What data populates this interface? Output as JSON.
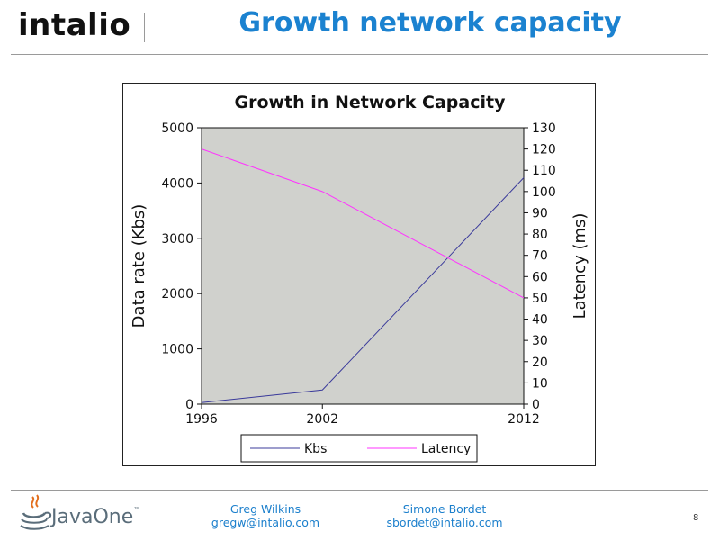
{
  "header": {
    "logo_text": "intalio",
    "title": "Growth network capacity"
  },
  "footer": {
    "logo_text": "JavaOne",
    "logo_tm": "™",
    "authors": [
      {
        "name": "Greg Wilkins",
        "email": "gregw@intalio.com"
      },
      {
        "name": "Simone Bordet",
        "email": "sbordet@intalio.com"
      }
    ],
    "page_number": "8"
  },
  "colors": {
    "title": "#1b82d0",
    "plot_background": "#d0d1cd",
    "kbs_line": "#3b3b9b",
    "latency_line": "#ff33ff"
  },
  "chart_data": {
    "type": "line",
    "title": "Growth in Network Capacity",
    "xlabel": "",
    "ylabel": "Data rate (Kbs)",
    "y2label": "Latency (ms)",
    "x": [
      1996,
      2002,
      2012
    ],
    "x_ticks": [
      "1996",
      "2002",
      "2012"
    ],
    "xlim": [
      1996,
      2012
    ],
    "ylim": [
      0,
      5000
    ],
    "y_ticks": [
      0,
      1000,
      2000,
      3000,
      4000,
      5000
    ],
    "y2lim": [
      0,
      130
    ],
    "y2_ticks": [
      0,
      10,
      20,
      30,
      40,
      50,
      60,
      70,
      80,
      90,
      100,
      110,
      120,
      130
    ],
    "grid": false,
    "legend_position": "bottom",
    "series": [
      {
        "name": "Kbs",
        "axis": "left",
        "values": [
          28,
          256,
          4096
        ]
      },
      {
        "name": "Latency",
        "axis": "right",
        "values": [
          120,
          100,
          50
        ]
      }
    ]
  }
}
